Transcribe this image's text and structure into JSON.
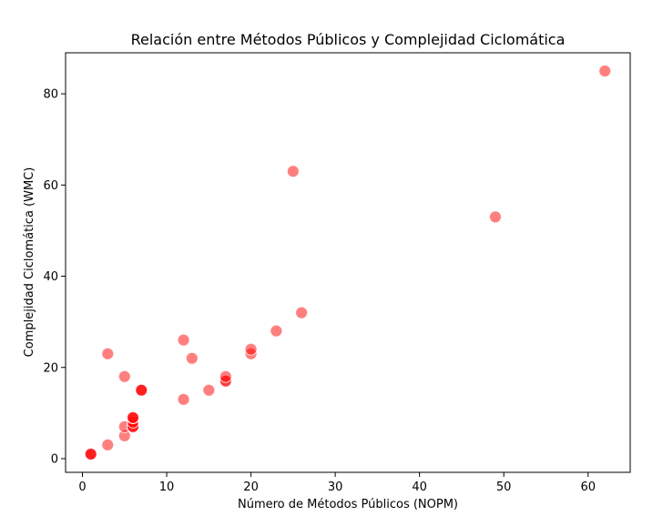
{
  "chart_data": {
    "type": "scatter",
    "title": "Relación entre Métodos Públicos y Complejidad Ciclomática",
    "xlabel": "Número de Métodos Públicos (NOPM)",
    "ylabel": "Complejidad Ciclomática (WMC)",
    "xlim": [
      -2,
      65
    ],
    "ylim": [
      -3,
      89
    ],
    "xticks": [
      0,
      10,
      20,
      30,
      40,
      50,
      60
    ],
    "yticks": [
      0,
      20,
      40,
      60,
      80
    ],
    "grid": false,
    "point_color": "#ff0000",
    "point_edge_color": "#ffffff",
    "point_alpha": 0.5,
    "points": [
      {
        "x": 1,
        "y": 1
      },
      {
        "x": 1,
        "y": 1
      },
      {
        "x": 1,
        "y": 1
      },
      {
        "x": 3,
        "y": 3
      },
      {
        "x": 3,
        "y": 23
      },
      {
        "x": 5,
        "y": 5
      },
      {
        "x": 5,
        "y": 7
      },
      {
        "x": 5,
        "y": 18
      },
      {
        "x": 6,
        "y": 7
      },
      {
        "x": 6,
        "y": 7
      },
      {
        "x": 6,
        "y": 7
      },
      {
        "x": 6,
        "y": 8
      },
      {
        "x": 6,
        "y": 9
      },
      {
        "x": 6,
        "y": 9
      },
      {
        "x": 6,
        "y": 9
      },
      {
        "x": 7,
        "y": 15
      },
      {
        "x": 7,
        "y": 15
      },
      {
        "x": 7,
        "y": 15
      },
      {
        "x": 12,
        "y": 13
      },
      {
        "x": 12,
        "y": 26
      },
      {
        "x": 13,
        "y": 22
      },
      {
        "x": 15,
        "y": 15
      },
      {
        "x": 17,
        "y": 17
      },
      {
        "x": 17,
        "y": 17
      },
      {
        "x": 17,
        "y": 18
      },
      {
        "x": 20,
        "y": 23
      },
      {
        "x": 20,
        "y": 24
      },
      {
        "x": 23,
        "y": 28
      },
      {
        "x": 25,
        "y": 63
      },
      {
        "x": 26,
        "y": 32
      },
      {
        "x": 49,
        "y": 53
      },
      {
        "x": 62,
        "y": 85
      }
    ]
  }
}
